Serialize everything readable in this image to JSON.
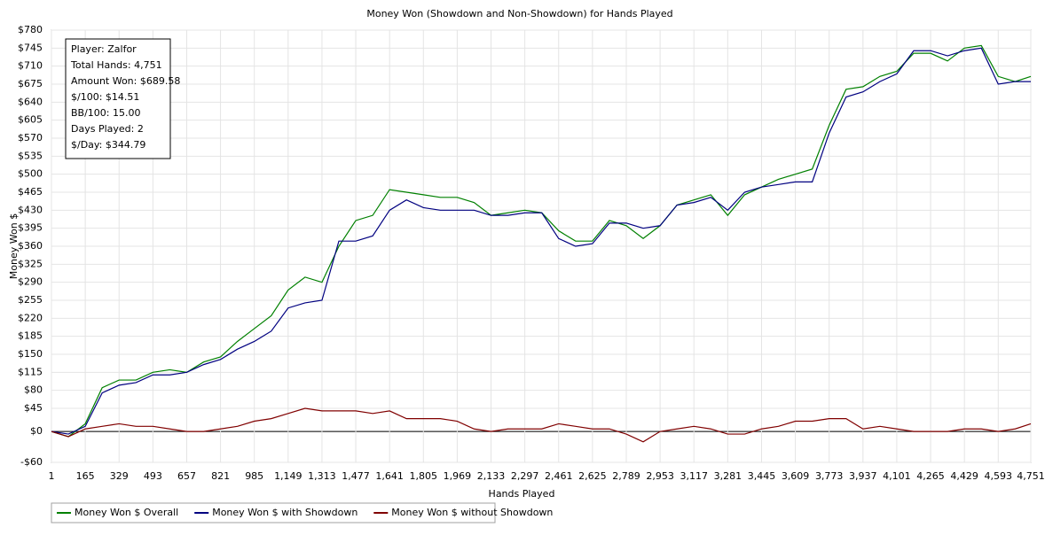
{
  "chart_data": {
    "type": "line",
    "title": "Money Won (Showdown and Non-Showdown) for Hands Played",
    "x_label": "Hands Played",
    "y_label": "Money Won $",
    "info": [
      "Player: Zalfor",
      "Total Hands: 4,751",
      "Amount Won: $689.58",
      "$/100: $14.51",
      "BB/100: 15.00",
      "Days Played: 2",
      "$/Day: $344.79"
    ],
    "x": [
      1,
      83,
      165,
      247,
      329,
      411,
      493,
      575,
      657,
      739,
      821,
      903,
      985,
      1067,
      1149,
      1231,
      1313,
      1395,
      1477,
      1559,
      1641,
      1723,
      1805,
      1887,
      1969,
      2051,
      2133,
      2215,
      2297,
      2379,
      2461,
      2543,
      2625,
      2707,
      2789,
      2871,
      2953,
      3035,
      3117,
      3199,
      3281,
      3363,
      3445,
      3527,
      3609,
      3691,
      3773,
      3855,
      3937,
      4019,
      4101,
      4183,
      4265,
      4347,
      4429,
      4511,
      4593,
      4675,
      4751
    ],
    "series": [
      {
        "name": "Money Won $ Overall",
        "color": "#008000",
        "values": [
          0,
          -10,
          15,
          85,
          100,
          100,
          115,
          120,
          115,
          135,
          145,
          175,
          200,
          225,
          275,
          300,
          290,
          360,
          410,
          420,
          470,
          465,
          460,
          455,
          455,
          445,
          420,
          425,
          430,
          425,
          390,
          370,
          370,
          410,
          400,
          375,
          400,
          440,
          450,
          460,
          420,
          460,
          475,
          490,
          500,
          510,
          595,
          665,
          670,
          690,
          700,
          735,
          735,
          720,
          745,
          750,
          690,
          680,
          690
        ]
      },
      {
        "name": "Money Won $ with Showdown",
        "color": "#000080",
        "values": [
          0,
          -5,
          10,
          75,
          90,
          95,
          110,
          110,
          115,
          130,
          140,
          160,
          175,
          195,
          240,
          250,
          255,
          370,
          370,
          380,
          430,
          450,
          435,
          430,
          430,
          430,
          420,
          420,
          425,
          425,
          375,
          360,
          365,
          405,
          405,
          395,
          400,
          440,
          445,
          455,
          430,
          465,
          475,
          480,
          485,
          485,
          580,
          650,
          660,
          680,
          695,
          740,
          740,
          730,
          740,
          745,
          675,
          680,
          680
        ]
      },
      {
        "name": "Money Won $ without Showdown",
        "color": "#800000",
        "values": [
          0,
          -10,
          5,
          10,
          15,
          10,
          10,
          5,
          0,
          0,
          5,
          10,
          20,
          25,
          35,
          45,
          40,
          40,
          40,
          35,
          40,
          25,
          25,
          25,
          20,
          5,
          0,
          5,
          5,
          5,
          15,
          10,
          5,
          5,
          -5,
          -20,
          0,
          5,
          10,
          5,
          -5,
          -5,
          5,
          10,
          20,
          20,
          25,
          25,
          5,
          10,
          5,
          0,
          0,
          0,
          5,
          5,
          0,
          5,
          15
        ]
      }
    ],
    "xlim": [
      1,
      4751
    ],
    "xticks": [
      1,
      165,
      329,
      493,
      657,
      821,
      985,
      {
        "value": 1149,
        "label": "1,149"
      },
      {
        "value": 1313,
        "label": "1,313"
      },
      {
        "value": 1477,
        "label": "1,477"
      },
      {
        "value": 1641,
        "label": "1,641"
      },
      {
        "value": 1805,
        "label": "1,805"
      },
      {
        "value": 1969,
        "label": "1,969"
      },
      {
        "value": 2133,
        "label": "2,133"
      },
      {
        "value": 2297,
        "label": "2,297"
      },
      {
        "value": 2461,
        "label": "2,461"
      },
      {
        "value": 2625,
        "label": "2,625"
      },
      {
        "value": 2789,
        "label": "2,789"
      },
      {
        "value": 2953,
        "label": "2,953"
      },
      {
        "value": 3117,
        "label": "3,117"
      },
      {
        "value": 3281,
        "label": "3,281"
      },
      {
        "value": 3445,
        "label": "3,445"
      },
      {
        "value": 3609,
        "label": "3,609"
      },
      {
        "value": 3773,
        "label": "3,773"
      },
      {
        "value": 3937,
        "label": "3,937"
      },
      {
        "value": 4101,
        "label": "4,101"
      },
      {
        "value": 4265,
        "label": "4,265"
      },
      {
        "value": 4429,
        "label": "4,429"
      },
      {
        "value": 4593,
        "label": "4,593"
      },
      {
        "value": 4751,
        "label": "4,751"
      }
    ],
    "ylim": [
      -60,
      780
    ],
    "yticks": [
      {
        "value": -60,
        "label": "-$60"
      },
      {
        "value": 0,
        "label": "$0"
      },
      {
        "value": 45,
        "label": "$45"
      },
      {
        "value": 80,
        "label": "$80"
      },
      {
        "value": 115,
        "label": "$115"
      },
      {
        "value": 150,
        "label": "$150"
      },
      {
        "value": 185,
        "label": "$185"
      },
      {
        "value": 220,
        "label": "$220"
      },
      {
        "value": 255,
        "label": "$255"
      },
      {
        "value": 290,
        "label": "$290"
      },
      {
        "value": 325,
        "label": "$325"
      },
      {
        "value": 360,
        "label": "$360"
      },
      {
        "value": 395,
        "label": "$395"
      },
      {
        "value": 430,
        "label": "$430"
      },
      {
        "value": 465,
        "label": "$465"
      },
      {
        "value": 500,
        "label": "$500"
      },
      {
        "value": 535,
        "label": "$535"
      },
      {
        "value": 570,
        "label": "$570"
      },
      {
        "value": 605,
        "label": "$605"
      },
      {
        "value": 640,
        "label": "$640"
      },
      {
        "value": 675,
        "label": "$675"
      },
      {
        "value": 710,
        "label": "$710"
      },
      {
        "value": 745,
        "label": "$745"
      },
      {
        "value": 780,
        "label": "$780"
      }
    ],
    "grid": true
  }
}
